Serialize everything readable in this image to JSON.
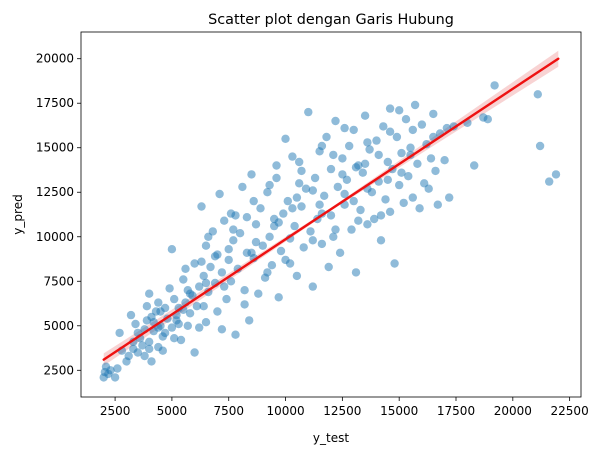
{
  "chart_data": {
    "type": "scatter",
    "title": "Scatter plot dengan Garis Hubung",
    "xlabel": "y_test",
    "ylabel": "y_pred",
    "xlim": [
      1000,
      23000
    ],
    "ylim": [
      1000,
      21500
    ],
    "xticks": [
      2500,
      5000,
      7500,
      10000,
      12500,
      15000,
      17500,
      20000,
      22500
    ],
    "yticks": [
      2500,
      5000,
      7500,
      10000,
      12500,
      15000,
      17500,
      20000
    ],
    "grid": false,
    "colors": {
      "points": "#1f77b4",
      "line": "#ee1111",
      "band": "#f4b6b6"
    },
    "regression_line": {
      "x": [
        2000,
        22000
      ],
      "y": [
        3100,
        20000
      ]
    },
    "confidence_band": {
      "x": [
        2000,
        12000,
        22000
      ],
      "half_width": [
        350,
        80,
        450
      ]
    },
    "points": [
      [
        2000,
        2100
      ],
      [
        2050,
        2400
      ],
      [
        2100,
        2700
      ],
      [
        2200,
        2300
      ],
      [
        2300,
        2500
      ],
      [
        2500,
        2100
      ],
      [
        2600,
        2600
      ],
      [
        2700,
        4600
      ],
      [
        3000,
        3000
      ],
      [
        3100,
        3300
      ],
      [
        3200,
        5600
      ],
      [
        3300,
        3700
      ],
      [
        3400,
        5100
      ],
      [
        3500,
        3500
      ],
      [
        3600,
        4300
      ],
      [
        3700,
        3900
      ],
      [
        3800,
        4800
      ],
      [
        3900,
        6100
      ],
      [
        4000,
        4100
      ],
      [
        4000,
        6800
      ],
      [
        4100,
        3000
      ],
      [
        4100,
        5500
      ],
      [
        4200,
        4700
      ],
      [
        4300,
        5800
      ],
      [
        4400,
        3800
      ],
      [
        4400,
        6300
      ],
      [
        4500,
        5000
      ],
      [
        4600,
        4400
      ],
      [
        4700,
        6000
      ],
      [
        4800,
        5400
      ],
      [
        4900,
        7100
      ],
      [
        5000,
        4900
      ],
      [
        5000,
        9300
      ],
      [
        5100,
        6500
      ],
      [
        5200,
        5300
      ],
      [
        5200,
        5600
      ],
      [
        5300,
        6000
      ],
      [
        5400,
        4200
      ],
      [
        5500,
        7600
      ],
      [
        5600,
        6300
      ],
      [
        5700,
        5000
      ],
      [
        5800,
        5700
      ],
      [
        5900,
        6700
      ],
      [
        6000,
        3500
      ],
      [
        6000,
        8500
      ],
      [
        6100,
        6100
      ],
      [
        6200,
        7200
      ],
      [
        6300,
        11700
      ],
      [
        6400,
        7800
      ],
      [
        6500,
        9500
      ],
      [
        6500,
        5200
      ],
      [
        6600,
        6900
      ],
      [
        6700,
        8300
      ],
      [
        6800,
        10300
      ],
      [
        6900,
        7400
      ],
      [
        7000,
        5800
      ],
      [
        7000,
        9000
      ],
      [
        7100,
        12400
      ],
      [
        7200,
        8000
      ],
      [
        7300,
        10900
      ],
      [
        7400,
        6500
      ],
      [
        7500,
        8700
      ],
      [
        7600,
        7500
      ],
      [
        7700,
        9800
      ],
      [
        7800,
        4500
      ],
      [
        7800,
        11200
      ],
      [
        7900,
        8200
      ],
      [
        8000,
        10200
      ],
      [
        8100,
        12800
      ],
      [
        8200,
        7000
      ],
      [
        8300,
        9100
      ],
      [
        8400,
        5300
      ],
      [
        8500,
        13500
      ],
      [
        8600,
        8800
      ],
      [
        8700,
        10700
      ],
      [
        8800,
        6800
      ],
      [
        8900,
        11600
      ],
      [
        9000,
        9500
      ],
      [
        9100,
        7700
      ],
      [
        9200,
        12500
      ],
      [
        9300,
        10000
      ],
      [
        9400,
        8400
      ],
      [
        9500,
        11000
      ],
      [
        9600,
        14000
      ],
      [
        9700,
        6600
      ],
      [
        9800,
        9200
      ],
      [
        9900,
        11300
      ],
      [
        10000,
        8700
      ],
      [
        10000,
        15500
      ],
      [
        10100,
        12000
      ],
      [
        10200,
        9900
      ],
      [
        10300,
        14500
      ],
      [
        10400,
        10600
      ],
      [
        10500,
        7800
      ],
      [
        10600,
        13000
      ],
      [
        10700,
        11700
      ],
      [
        10800,
        9400
      ],
      [
        10900,
        12700
      ],
      [
        11000,
        17000
      ],
      [
        11100,
        10300
      ],
      [
        11200,
        7200
      ],
      [
        11300,
        13300
      ],
      [
        11400,
        11000
      ],
      [
        11500,
        14800
      ],
      [
        11600,
        9600
      ],
      [
        11700,
        12300
      ],
      [
        11800,
        15600
      ],
      [
        11900,
        8300
      ],
      [
        12000,
        13800
      ],
      [
        12000,
        11200
      ],
      [
        12100,
        10000
      ],
      [
        12200,
        16500
      ],
      [
        12300,
        12800
      ],
      [
        12400,
        9100
      ],
      [
        12500,
        14400
      ],
      [
        12600,
        11800
      ],
      [
        12700,
        13200
      ],
      [
        12800,
        15100
      ],
      [
        12900,
        10400
      ],
      [
        13000,
        16000
      ],
      [
        13000,
        12000
      ],
      [
        13100,
        8000
      ],
      [
        13200,
        14000
      ],
      [
        13300,
        11500
      ],
      [
        13400,
        13600
      ],
      [
        13500,
        16800
      ],
      [
        13600,
        10700
      ],
      [
        13700,
        14900
      ],
      [
        13800,
        12500
      ],
      [
        13900,
        11000
      ],
      [
        14000,
        15400
      ],
      [
        14100,
        13100
      ],
      [
        14200,
        9800
      ],
      [
        14300,
        16200
      ],
      [
        14400,
        12100
      ],
      [
        14500,
        14200
      ],
      [
        14600,
        11400
      ],
      [
        14700,
        13800
      ],
      [
        14800,
        8500
      ],
      [
        14900,
        15600
      ],
      [
        15000,
        12900
      ],
      [
        15000,
        17100
      ],
      [
        15100,
        14700
      ],
      [
        15200,
        11900
      ],
      [
        15300,
        16600
      ],
      [
        15400,
        13400
      ],
      [
        15500,
        15000
      ],
      [
        15600,
        12200
      ],
      [
        15700,
        17400
      ],
      [
        15800,
        14100
      ],
      [
        15900,
        11600
      ],
      [
        16000,
        16300
      ],
      [
        16100,
        13000
      ],
      [
        16200,
        15200
      ],
      [
        16300,
        12700
      ],
      [
        16400,
        14400
      ],
      [
        16500,
        16900
      ],
      [
        16600,
        13700
      ],
      [
        16700,
        11800
      ],
      [
        16800,
        15800
      ],
      [
        17000,
        14300
      ],
      [
        17100,
        16100
      ],
      [
        17200,
        12200
      ],
      [
        17400,
        16200
      ],
      [
        18000,
        16400
      ],
      [
        18300,
        14000
      ],
      [
        18700,
        16700
      ],
      [
        18900,
        16600
      ],
      [
        19200,
        18500
      ],
      [
        21100,
        18000
      ],
      [
        21200,
        15100
      ],
      [
        21600,
        13100
      ],
      [
        21900,
        13500
      ],
      [
        2800,
        3600
      ],
      [
        3300,
        4100
      ],
      [
        3800,
        3300
      ],
      [
        4200,
        5200
      ],
      [
        4700,
        4600
      ],
      [
        5300,
        5100
      ],
      [
        5800,
        6800
      ],
      [
        6400,
        6100
      ],
      [
        6900,
        8900
      ],
      [
        7300,
        7200
      ],
      [
        7700,
        10400
      ],
      [
        8300,
        11100
      ],
      [
        8700,
        9700
      ],
      [
        9300,
        12900
      ],
      [
        9700,
        10800
      ],
      [
        10300,
        11600
      ],
      [
        10700,
        13700
      ],
      [
        11200,
        12600
      ],
      [
        11600,
        11300
      ],
      [
        12100,
        14600
      ],
      [
        12600,
        12400
      ],
      [
        13100,
        13900
      ],
      [
        13600,
        12700
      ],
      [
        14100,
        14600
      ],
      [
        14600,
        15900
      ],
      [
        15100,
        13600
      ],
      [
        15600,
        16000
      ],
      [
        3500,
        4600
      ],
      [
        4500,
        5800
      ],
      [
        5500,
        5900
      ],
      [
        6500,
        7400
      ],
      [
        7500,
        9300
      ],
      [
        8500,
        9100
      ],
      [
        9500,
        10600
      ],
      [
        10500,
        12200
      ],
      [
        11500,
        11800
      ],
      [
        12500,
        13500
      ],
      [
        13500,
        14100
      ],
      [
        14500,
        13200
      ],
      [
        15500,
        14600
      ],
      [
        16500,
        15600
      ],
      [
        6200,
        4900
      ],
      [
        7200,
        4800
      ],
      [
        8200,
        6200
      ],
      [
        9200,
        8000
      ],
      [
        10200,
        8500
      ],
      [
        11200,
        9800
      ],
      [
        12200,
        10400
      ],
      [
        13200,
        10900
      ],
      [
        14200,
        11200
      ],
      [
        5600,
        8200
      ],
      [
        6600,
        10000
      ],
      [
        7600,
        11300
      ],
      [
        8600,
        12000
      ],
      [
        9600,
        13300
      ],
      [
        10600,
        14200
      ],
      [
        11600,
        15100
      ],
      [
        12600,
        16100
      ],
      [
        13600,
        15300
      ],
      [
        14600,
        17200
      ],
      [
        4000,
        3700
      ],
      [
        4600,
        3600
      ],
      [
        5100,
        4300
      ],
      [
        3900,
        5300
      ],
      [
        4400,
        4900
      ],
      [
        5700,
        7000
      ],
      [
        6300,
        8600
      ]
    ]
  }
}
